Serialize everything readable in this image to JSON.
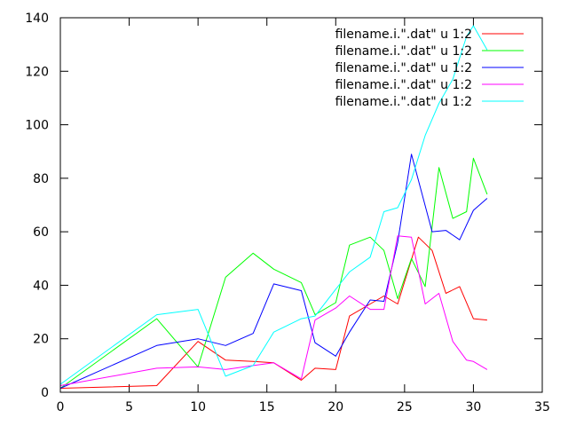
{
  "chart_data": {
    "type": "line",
    "xlim": [
      0,
      35
    ],
    "ylim": [
      0,
      140
    ],
    "x_ticks": [
      0,
      5,
      10,
      15,
      20,
      25,
      30,
      35
    ],
    "y_ticks": [
      0,
      20,
      40,
      60,
      80,
      100,
      120,
      140
    ],
    "grid": false,
    "legend_position": "top-right",
    "series": [
      {
        "name": "filename.i.\".dat\" u 1:2",
        "color": "#ff0000",
        "points": [
          [
            0,
            1.5
          ],
          [
            7,
            2.5
          ],
          [
            10,
            19
          ],
          [
            12,
            12
          ],
          [
            14,
            11.5
          ],
          [
            15.5,
            11
          ],
          [
            17.5,
            4.5
          ],
          [
            18.5,
            9
          ],
          [
            20,
            8.5
          ],
          [
            21,
            28.5
          ],
          [
            22.5,
            33
          ],
          [
            23.5,
            36
          ],
          [
            24.5,
            33
          ],
          [
            26,
            58
          ],
          [
            27,
            53
          ],
          [
            28,
            37
          ],
          [
            29,
            39.5
          ],
          [
            30,
            27.5
          ],
          [
            31,
            27
          ]
        ]
      },
      {
        "name": "filename.i.\".dat\" u 1:2",
        "color": "#00ff00",
        "points": [
          [
            0,
            1.5
          ],
          [
            7,
            27.5
          ],
          [
            10,
            9.5
          ],
          [
            12,
            43
          ],
          [
            14,
            52
          ],
          [
            15.5,
            46
          ],
          [
            17.5,
            41
          ],
          [
            18.5,
            29
          ],
          [
            20,
            33.5
          ],
          [
            21,
            55
          ],
          [
            22.5,
            58
          ],
          [
            23.5,
            53
          ],
          [
            24.5,
            35
          ],
          [
            25.5,
            50
          ],
          [
            26.5,
            39.5
          ],
          [
            27.5,
            84
          ],
          [
            28.5,
            65
          ],
          [
            29.5,
            67.5
          ],
          [
            30,
            87.5
          ],
          [
            31,
            74
          ]
        ]
      },
      {
        "name": "filename.i.\".dat\" u 1:2",
        "color": "#0000ff",
        "points": [
          [
            0,
            1.5
          ],
          [
            7,
            17.5
          ],
          [
            10,
            20
          ],
          [
            12,
            17.5
          ],
          [
            14,
            22
          ],
          [
            15.5,
            40.5
          ],
          [
            17.5,
            38
          ],
          [
            18.5,
            18.5
          ],
          [
            20,
            13.5
          ],
          [
            21,
            22.5
          ],
          [
            22.5,
            34.5
          ],
          [
            23.5,
            34
          ],
          [
            24.5,
            56
          ],
          [
            25.5,
            89
          ],
          [
            27,
            60
          ],
          [
            28,
            60.5
          ],
          [
            29,
            57
          ],
          [
            30,
            68
          ],
          [
            31,
            72.5
          ]
        ]
      },
      {
        "name": "filename.i.\".dat\" u 1:2",
        "color": "#ff00ff",
        "points": [
          [
            0,
            2.5
          ],
          [
            7,
            9
          ],
          [
            10,
            9.5
          ],
          [
            12,
            8.5
          ],
          [
            14,
            10
          ],
          [
            15.5,
            11
          ],
          [
            17.5,
            5
          ],
          [
            18.5,
            27
          ],
          [
            20,
            31.5
          ],
          [
            21,
            36
          ],
          [
            22.5,
            31
          ],
          [
            23.5,
            31
          ],
          [
            24.5,
            58.5
          ],
          [
            25.5,
            58
          ],
          [
            26.5,
            33
          ],
          [
            27.5,
            37
          ],
          [
            28.5,
            19
          ],
          [
            29.5,
            12
          ],
          [
            30,
            11.5
          ],
          [
            31,
            8.5
          ]
        ]
      },
      {
        "name": "filename.i.\".dat\" u 1:2",
        "color": "#00ffff",
        "points": [
          [
            0,
            3
          ],
          [
            7,
            29
          ],
          [
            10,
            31
          ],
          [
            12,
            6
          ],
          [
            14,
            10
          ],
          [
            15.5,
            22.5
          ],
          [
            17.5,
            27.5
          ],
          [
            18.5,
            28.5
          ],
          [
            20,
            38.5
          ],
          [
            21,
            45
          ],
          [
            22.5,
            50.5
          ],
          [
            23.5,
            67.5
          ],
          [
            24.5,
            69
          ],
          [
            25.5,
            79.5
          ],
          [
            26.5,
            96
          ],
          [
            27.5,
            108
          ],
          [
            28.5,
            117
          ],
          [
            29.5,
            133
          ],
          [
            30,
            137
          ],
          [
            31,
            128
          ]
        ]
      }
    ]
  }
}
